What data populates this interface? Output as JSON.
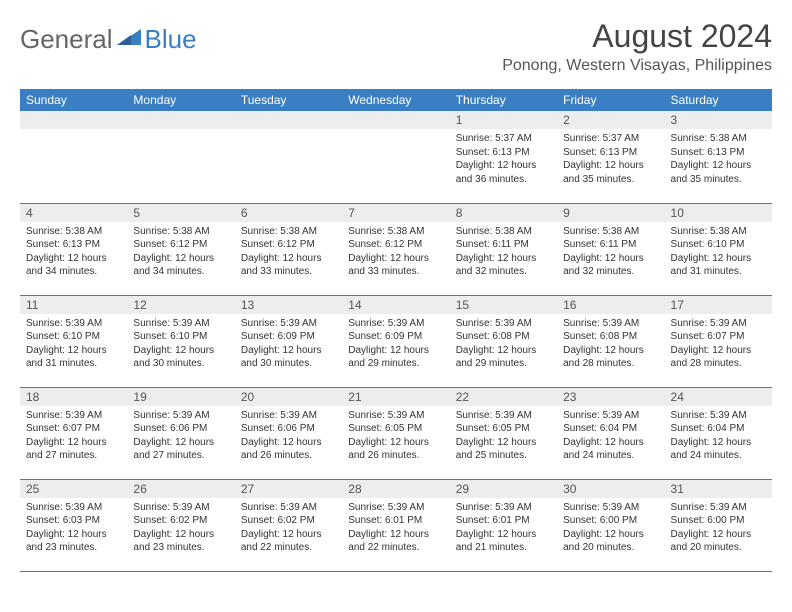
{
  "logo": {
    "general": "General",
    "blue": "Blue"
  },
  "title": "August 2024",
  "location": "Ponong, Western Visayas, Philippines",
  "colors": {
    "header_bg": "#3a7fc4",
    "header_text": "#ffffff",
    "daynum_bg": "#ededed",
    "border": "#3a7fc4",
    "body_text": "#333333"
  },
  "weekdays": [
    "Sunday",
    "Monday",
    "Tuesday",
    "Wednesday",
    "Thursday",
    "Friday",
    "Saturday"
  ],
  "weeks": [
    [
      null,
      null,
      null,
      null,
      {
        "n": "1",
        "sr": "5:37 AM",
        "ss": "6:13 PM",
        "dl": "12 hours and 36 minutes."
      },
      {
        "n": "2",
        "sr": "5:37 AM",
        "ss": "6:13 PM",
        "dl": "12 hours and 35 minutes."
      },
      {
        "n": "3",
        "sr": "5:38 AM",
        "ss": "6:13 PM",
        "dl": "12 hours and 35 minutes."
      }
    ],
    [
      {
        "n": "4",
        "sr": "5:38 AM",
        "ss": "6:13 PM",
        "dl": "12 hours and 34 minutes."
      },
      {
        "n": "5",
        "sr": "5:38 AM",
        "ss": "6:12 PM",
        "dl": "12 hours and 34 minutes."
      },
      {
        "n": "6",
        "sr": "5:38 AM",
        "ss": "6:12 PM",
        "dl": "12 hours and 33 minutes."
      },
      {
        "n": "7",
        "sr": "5:38 AM",
        "ss": "6:12 PM",
        "dl": "12 hours and 33 minutes."
      },
      {
        "n": "8",
        "sr": "5:38 AM",
        "ss": "6:11 PM",
        "dl": "12 hours and 32 minutes."
      },
      {
        "n": "9",
        "sr": "5:38 AM",
        "ss": "6:11 PM",
        "dl": "12 hours and 32 minutes."
      },
      {
        "n": "10",
        "sr": "5:38 AM",
        "ss": "6:10 PM",
        "dl": "12 hours and 31 minutes."
      }
    ],
    [
      {
        "n": "11",
        "sr": "5:39 AM",
        "ss": "6:10 PM",
        "dl": "12 hours and 31 minutes."
      },
      {
        "n": "12",
        "sr": "5:39 AM",
        "ss": "6:10 PM",
        "dl": "12 hours and 30 minutes."
      },
      {
        "n": "13",
        "sr": "5:39 AM",
        "ss": "6:09 PM",
        "dl": "12 hours and 30 minutes."
      },
      {
        "n": "14",
        "sr": "5:39 AM",
        "ss": "6:09 PM",
        "dl": "12 hours and 29 minutes."
      },
      {
        "n": "15",
        "sr": "5:39 AM",
        "ss": "6:08 PM",
        "dl": "12 hours and 29 minutes."
      },
      {
        "n": "16",
        "sr": "5:39 AM",
        "ss": "6:08 PM",
        "dl": "12 hours and 28 minutes."
      },
      {
        "n": "17",
        "sr": "5:39 AM",
        "ss": "6:07 PM",
        "dl": "12 hours and 28 minutes."
      }
    ],
    [
      {
        "n": "18",
        "sr": "5:39 AM",
        "ss": "6:07 PM",
        "dl": "12 hours and 27 minutes."
      },
      {
        "n": "19",
        "sr": "5:39 AM",
        "ss": "6:06 PM",
        "dl": "12 hours and 27 minutes."
      },
      {
        "n": "20",
        "sr": "5:39 AM",
        "ss": "6:06 PM",
        "dl": "12 hours and 26 minutes."
      },
      {
        "n": "21",
        "sr": "5:39 AM",
        "ss": "6:05 PM",
        "dl": "12 hours and 26 minutes."
      },
      {
        "n": "22",
        "sr": "5:39 AM",
        "ss": "6:05 PM",
        "dl": "12 hours and 25 minutes."
      },
      {
        "n": "23",
        "sr": "5:39 AM",
        "ss": "6:04 PM",
        "dl": "12 hours and 24 minutes."
      },
      {
        "n": "24",
        "sr": "5:39 AM",
        "ss": "6:04 PM",
        "dl": "12 hours and 24 minutes."
      }
    ],
    [
      {
        "n": "25",
        "sr": "5:39 AM",
        "ss": "6:03 PM",
        "dl": "12 hours and 23 minutes."
      },
      {
        "n": "26",
        "sr": "5:39 AM",
        "ss": "6:02 PM",
        "dl": "12 hours and 23 minutes."
      },
      {
        "n": "27",
        "sr": "5:39 AM",
        "ss": "6:02 PM",
        "dl": "12 hours and 22 minutes."
      },
      {
        "n": "28",
        "sr": "5:39 AM",
        "ss": "6:01 PM",
        "dl": "12 hours and 22 minutes."
      },
      {
        "n": "29",
        "sr": "5:39 AM",
        "ss": "6:01 PM",
        "dl": "12 hours and 21 minutes."
      },
      {
        "n": "30",
        "sr": "5:39 AM",
        "ss": "6:00 PM",
        "dl": "12 hours and 20 minutes."
      },
      {
        "n": "31",
        "sr": "5:39 AM",
        "ss": "6:00 PM",
        "dl": "12 hours and 20 minutes."
      }
    ]
  ],
  "labels": {
    "sunrise": "Sunrise:",
    "sunset": "Sunset:",
    "daylight": "Daylight:"
  }
}
